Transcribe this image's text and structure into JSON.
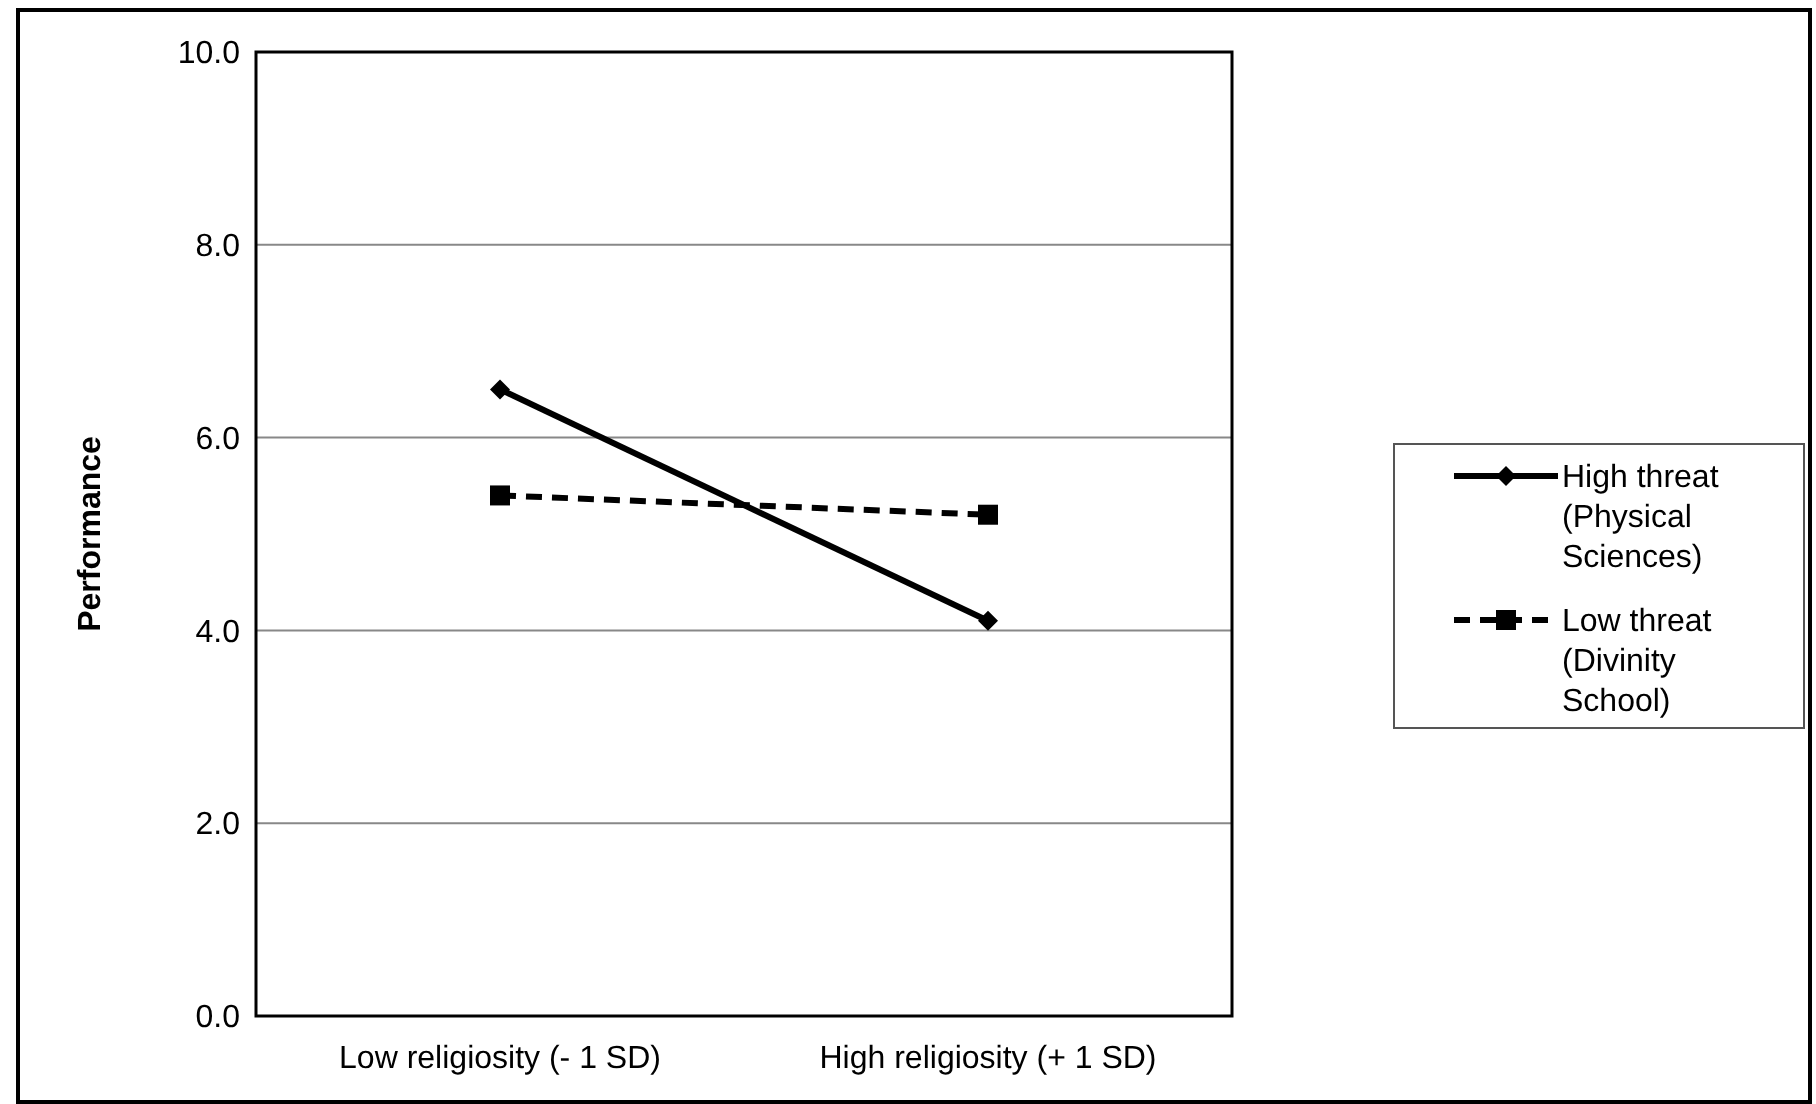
{
  "chart_data": {
    "type": "line",
    "ylabel": "Performance",
    "categories": [
      "Low religiosity (- 1 SD)",
      "High religiosity (+ 1 SD)"
    ],
    "series": [
      {
        "name": "High threat (Physical Sciences)",
        "color": "#000000",
        "values": [
          6.5,
          4.1
        ],
        "marker": "diamond",
        "line_style": "solid"
      },
      {
        "name": "Low threat (Divinity School)",
        "color": "#000000",
        "values": [
          5.4,
          5.2
        ],
        "marker": "square",
        "line_style": "dashed"
      }
    ],
    "ylim": [
      0,
      10
    ],
    "yticks": [
      {
        "value": 0,
        "label": "0.0"
      },
      {
        "value": 2,
        "label": "2.0"
      },
      {
        "value": 4,
        "label": "4.0"
      },
      {
        "value": 6,
        "label": "6.0"
      },
      {
        "value": 8,
        "label": "8.0"
      },
      {
        "value": 10,
        "label": "10.0"
      }
    ],
    "grid": "y",
    "legend": "right"
  }
}
